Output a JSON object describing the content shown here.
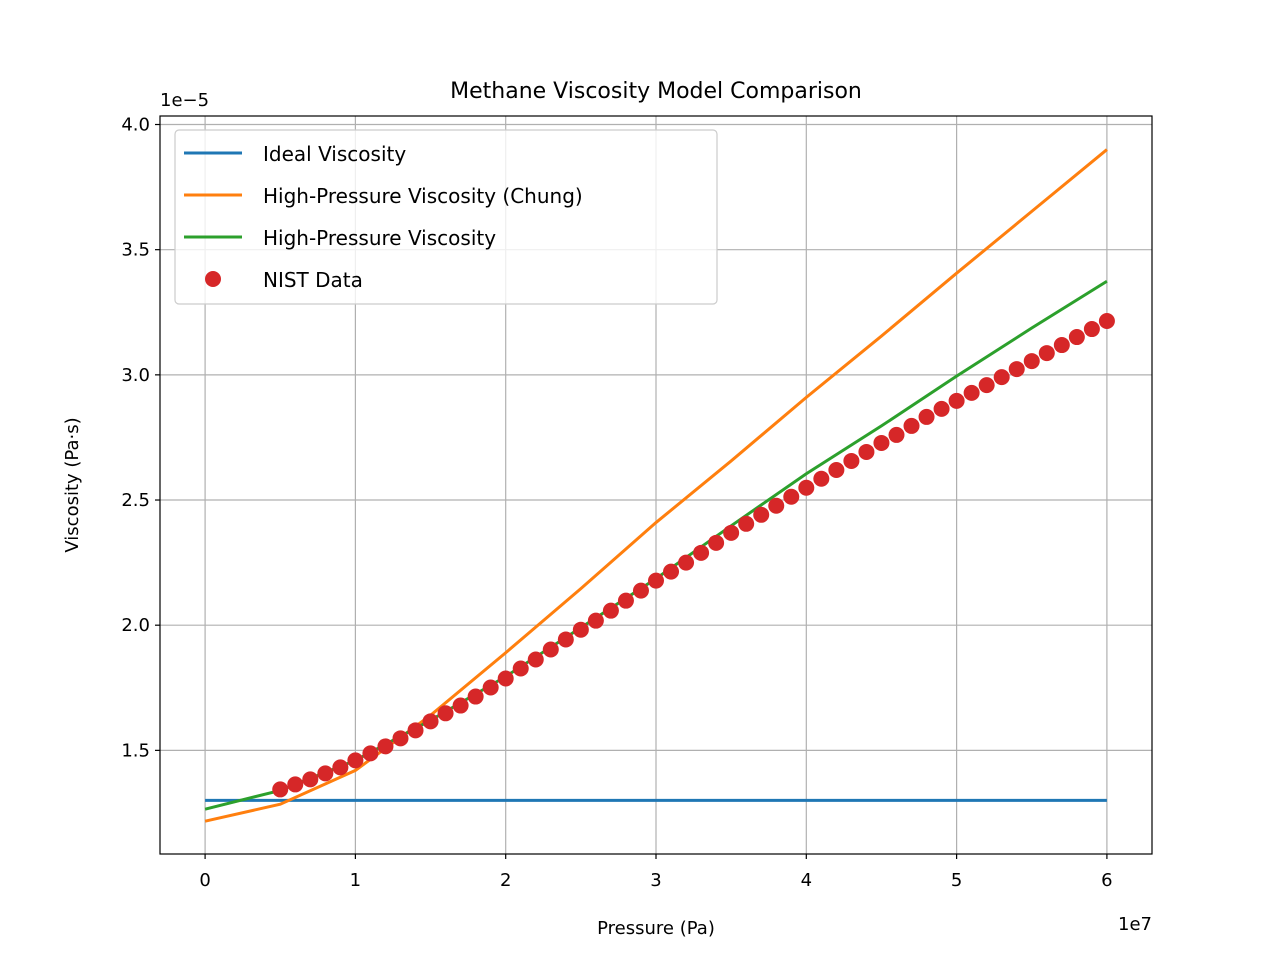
{
  "chart_data": {
    "type": "line",
    "title": "Methane Viscosity Model Comparison",
    "xlabel": "Pressure (Pa)",
    "ylabel": "Viscosity  (Pa·s)",
    "x_offset_label": "1e7",
    "y_offset_label": "1e−5",
    "xlim": [
      -0.3,
      6.3
    ],
    "ylim": [
      1.086,
      4.034
    ],
    "xticks": [
      0,
      1,
      2,
      3,
      4,
      5,
      6
    ],
    "xtick_labels": [
      "0",
      "1",
      "2",
      "3",
      "4",
      "5",
      "6"
    ],
    "yticks": [
      1.5,
      2.0,
      2.5,
      3.0,
      3.5,
      4.0
    ],
    "ytick_labels": [
      "1.5",
      "2.0",
      "2.5",
      "3.0",
      "3.5",
      "4.0"
    ],
    "grid": true,
    "legend_placement": "upper-left",
    "series": [
      {
        "name": "Ideal Viscosity",
        "kind": "line",
        "color": "#1f77b4",
        "x": [
          0,
          6
        ],
        "y": [
          1.3,
          1.3
        ]
      },
      {
        "name": "High-Pressure Viscosity (Chung)",
        "kind": "line",
        "color": "#ff7f0e",
        "x": [
          0,
          0.5,
          1.0,
          1.5,
          2.0,
          2.5,
          3.0,
          3.5,
          4.0,
          4.5,
          5.0,
          5.5,
          6.0
        ],
        "y": [
          1.217,
          1.285,
          1.42,
          1.64,
          1.89,
          2.146,
          2.41,
          2.656,
          2.91,
          3.155,
          3.406,
          3.653,
          3.9
        ]
      },
      {
        "name": "High-Pressure Viscosity",
        "kind": "line",
        "color": "#2ca02c",
        "x": [
          0,
          0.5,
          1.0,
          1.5,
          2.0,
          2.5,
          3.0,
          3.5,
          4.0,
          4.5,
          5.0,
          5.5,
          6.0
        ],
        "y": [
          1.265,
          1.34,
          1.46,
          1.62,
          1.795,
          1.99,
          2.186,
          2.397,
          2.605,
          2.796,
          2.995,
          3.187,
          3.374
        ]
      },
      {
        "name": "NIST Data",
        "kind": "scatter",
        "color": "#d62728",
        "x": [
          0.5,
          0.6,
          0.7,
          0.8,
          0.9,
          1.0,
          1.1,
          1.2,
          1.3,
          1.4,
          1.5,
          1.6,
          1.7,
          1.8,
          1.9,
          2.0,
          2.1,
          2.2,
          2.3,
          2.4,
          2.5,
          2.6,
          2.7,
          2.8,
          2.9,
          3.0,
          3.1,
          3.2,
          3.3,
          3.4,
          3.5,
          3.6,
          3.7,
          3.8,
          3.9,
          4.0,
          4.1,
          4.2,
          4.3,
          4.4,
          4.5,
          4.6,
          4.7,
          4.8,
          4.9,
          5.0,
          5.1,
          5.2,
          5.3,
          5.4,
          5.5,
          5.6,
          5.7,
          5.8,
          5.9,
          6.0
        ],
        "y": [
          1.344,
          1.364,
          1.384,
          1.408,
          1.432,
          1.46,
          1.488,
          1.516,
          1.548,
          1.58,
          1.616,
          1.648,
          1.679,
          1.715,
          1.751,
          1.787,
          1.827,
          1.863,
          1.903,
          1.943,
          1.982,
          2.018,
          2.058,
          2.098,
          2.138,
          2.178,
          2.214,
          2.25,
          2.289,
          2.329,
          2.369,
          2.405,
          2.441,
          2.477,
          2.513,
          2.549,
          2.585,
          2.62,
          2.656,
          2.692,
          2.728,
          2.76,
          2.796,
          2.832,
          2.864,
          2.896,
          2.928,
          2.959,
          2.991,
          3.023,
          3.055,
          3.087,
          3.119,
          3.151,
          3.183,
          3.215
        ]
      }
    ]
  }
}
